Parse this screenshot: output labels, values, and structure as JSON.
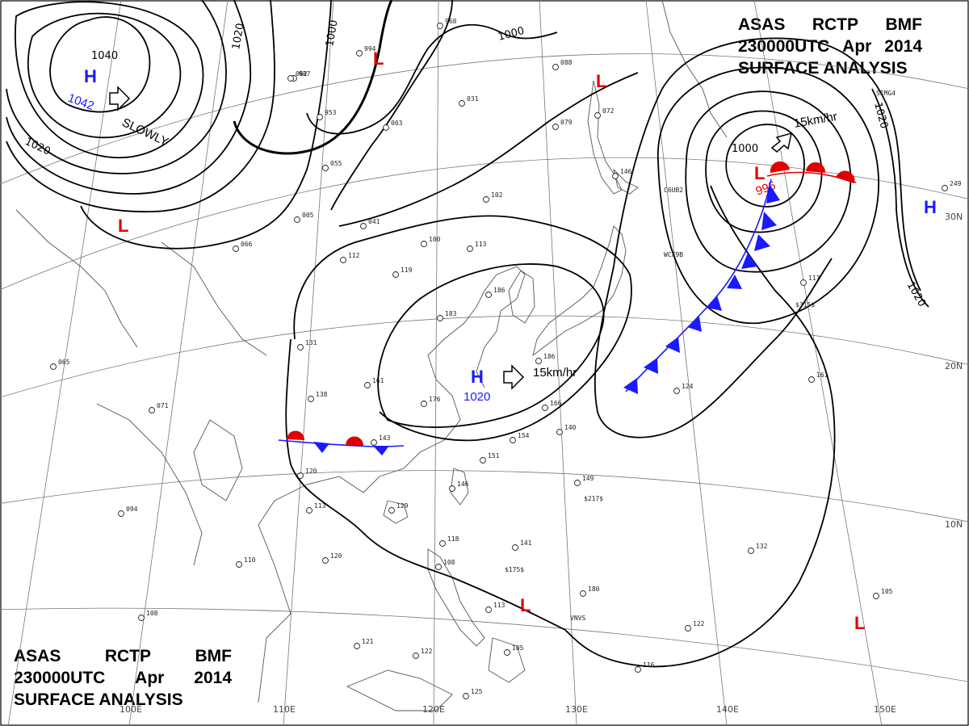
{
  "title_top": {
    "line1": [
      "ASAS",
      "RCTP",
      "BMF"
    ],
    "line2": [
      "230000UTC",
      "Apr",
      "2014"
    ],
    "line3": "SURFACE ANALYSIS"
  },
  "title_bottom": {
    "line1": [
      "ASAS",
      "RCTP",
      "BMF"
    ],
    "line2": [
      "230000UTC",
      "Apr",
      "2014"
    ],
    "line3": "SURFACE ANALYSIS"
  },
  "colors": {
    "high": "#1a1aff",
    "low": "#e00000",
    "cold_front": "#1a1aff",
    "warm_front": "#e00000",
    "isobar": "#000000",
    "coast": "#555555",
    "grid": "#777777"
  },
  "icons": {
    "motion_arrow": "hollow-arrow",
    "cold_front_symbol": "triangle-pip",
    "warm_front_symbol": "semicircle-pip",
    "station": "station-circle"
  },
  "isobar_labels": {
    "nw_1040": "1040",
    "nw_1020_top": "1020",
    "nw_1000": "1000",
    "nw_1020_left": "1020",
    "north_1000": "1000",
    "low_1000": "1000",
    "east_1020_top": "1020",
    "east_1020_bottom": "1020",
    "high_1020": "1020"
  },
  "centers": {
    "high_nw": {
      "letter": "H",
      "value": "1042"
    },
    "high_china": {
      "letter": "H",
      "value": "1020"
    },
    "high_east": {
      "letter": "H"
    },
    "low_japan": {
      "letter": "L",
      "value": "996"
    },
    "low_marks": {
      "l1": "L",
      "l2": "L",
      "l3": "L",
      "l4": "L",
      "l5": "L"
    }
  },
  "motion": {
    "nw": "SLOWLY",
    "china": "15km/hr",
    "japan": "15km/hr"
  },
  "grid": {
    "lon_110": "110E",
    "lon_120": "120E",
    "lon_130": "130E",
    "lon_140": "140E",
    "lon_150": "150E",
    "lon_100": "100E",
    "lat_30": "30N",
    "lat_20": "20N",
    "lat_10": "10N"
  },
  "stations": {
    "s1": "968",
    "s2": "994",
    "s3": "987",
    "s4": "953",
    "s5": "003",
    "s6": "031",
    "s7": "088",
    "s8": "079",
    "s9": "072",
    "s10": "005",
    "s11": "041",
    "s12": "100",
    "s13": "113",
    "s14": "119",
    "s15": "102",
    "s16": "131",
    "s17": "161",
    "s18": "176",
    "s19": "138",
    "s20": "143",
    "s21": "120",
    "s22": "113",
    "s23": "129",
    "s24": "146",
    "s25": "151",
    "s26": "149",
    "s27": "124",
    "s28": "161",
    "s29": "117",
    "s30": "140",
    "s31": "132",
    "s32": "122",
    "s33": "116",
    "s34": "105",
    "s35": "125",
    "s36": "121",
    "s37": "108",
    "s38": "118",
    "s39": "141",
    "s40": "180",
    "s41": "094",
    "s42": "110",
    "s43": "108",
    "s44": "071",
    "s45": "065",
    "s46": "066",
    "s47": "112",
    "s48": "183",
    "s49": "186",
    "s50": "154",
    "s51": "166",
    "s52": "186",
    "s53": "062",
    "s54": "055",
    "s55": "113",
    "s56": "122",
    "s57": "105",
    "s58": "120",
    "s59": "249",
    "s60": "146"
  },
  "station_codes": {
    "c1": "WCX9B",
    "c2": "C6UB2",
    "c3": "VNVS",
    "c4": "$217$",
    "c5": "$175$",
    "c6": "$315$",
    "c7": "SEMG4"
  }
}
